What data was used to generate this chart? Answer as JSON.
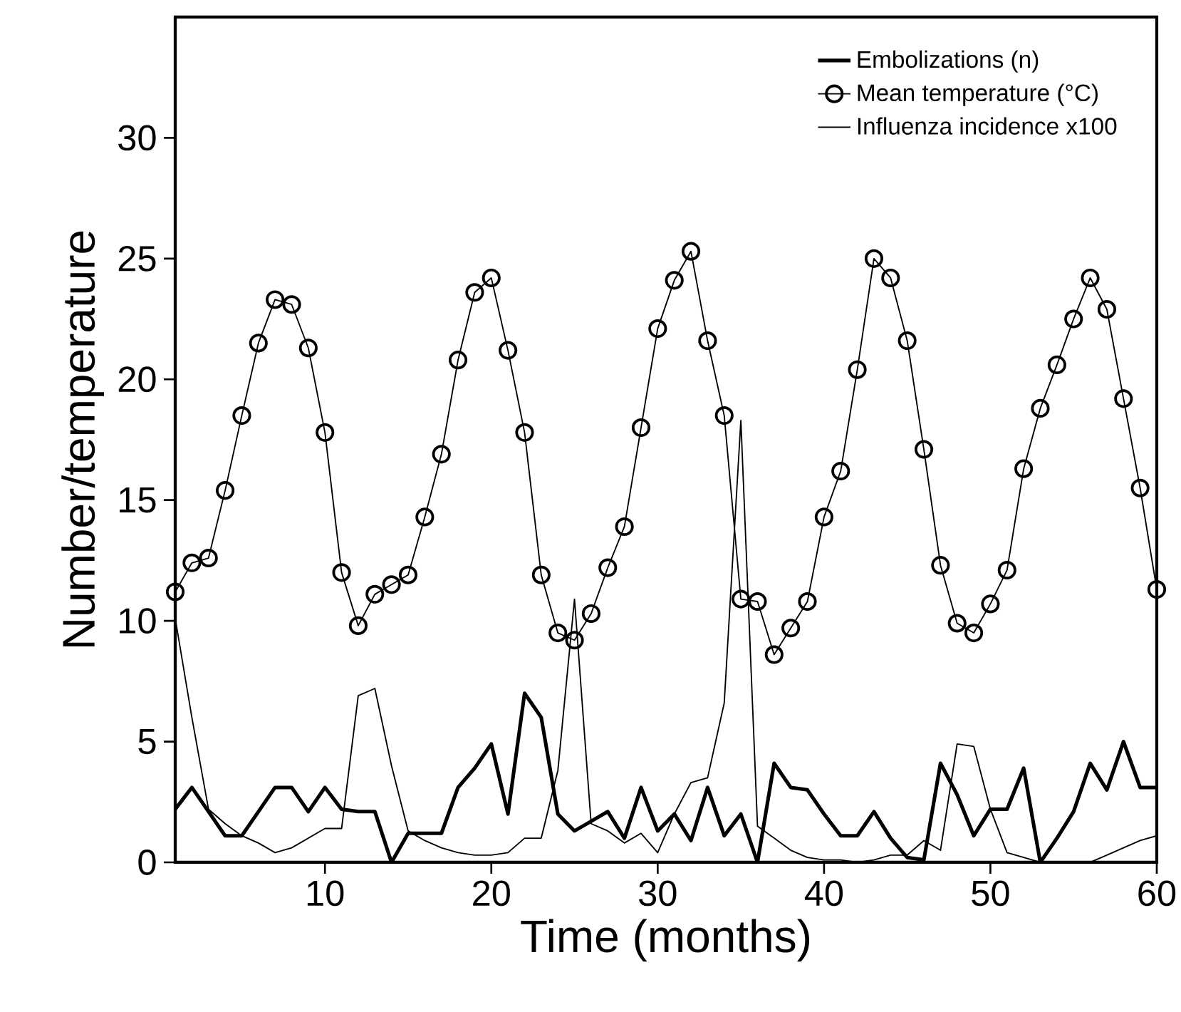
{
  "chart_data": {
    "type": "line",
    "xlabel": "Time (months)",
    "ylabel": "Number/temperature",
    "x": [
      1,
      2,
      3,
      4,
      5,
      6,
      7,
      8,
      9,
      10,
      11,
      12,
      13,
      14,
      15,
      16,
      17,
      18,
      19,
      20,
      21,
      22,
      23,
      24,
      25,
      26,
      27,
      28,
      29,
      30,
      31,
      32,
      33,
      34,
      35,
      36,
      37,
      38,
      39,
      40,
      41,
      42,
      43,
      44,
      45,
      46,
      47,
      48,
      49,
      50,
      51,
      52,
      53,
      54,
      55,
      56,
      57,
      58,
      59,
      60
    ],
    "series": [
      {
        "name": "Embolizations (n)",
        "color": "#000000",
        "values": [
          2.2,
          3.1,
          2.1,
          1.1,
          1.1,
          2.1,
          3.1,
          3.1,
          2.1,
          3.1,
          2.2,
          2.1,
          2.1,
          0,
          1.2,
          1.2,
          1.2,
          3.1,
          3.9,
          4.9,
          2.0,
          7.0,
          6.0,
          2.0,
          1.3,
          1.7,
          2.1,
          1.0,
          3.1,
          1.3,
          2.0,
          0.9,
          3.1,
          1.1,
          2.0,
          0,
          4.1,
          3.1,
          3.0,
          2.0,
          1.1,
          1.1,
          2.1,
          1.0,
          0.2,
          0.1,
          4.1,
          2.8,
          1.1,
          2.2,
          2.2,
          3.9,
          0,
          1.0,
          2.1,
          4.1,
          3.0,
          5.0,
          3.1,
          3.1
        ]
      },
      {
        "name": "Mean temperature (°C)",
        "color": "#000000",
        "marker": "circle",
        "values": [
          11.2,
          12.4,
          12.6,
          15.4,
          18.5,
          21.5,
          23.3,
          23.1,
          21.3,
          17.8,
          12.0,
          9.8,
          11.1,
          11.5,
          11.9,
          14.3,
          16.9,
          20.8,
          23.6,
          24.2,
          21.2,
          17.8,
          11.9,
          9.5,
          9.2,
          10.3,
          12.2,
          13.9,
          18.0,
          22.1,
          24.1,
          25.3,
          21.6,
          18.5,
          10.9,
          10.8,
          8.6,
          9.7,
          10.8,
          14.3,
          16.2,
          20.4,
          25.0,
          24.2,
          21.6,
          17.1,
          12.3,
          9.9,
          9.5,
          10.7,
          12.1,
          16.3,
          18.8,
          20.6,
          22.5,
          24.2,
          22.9,
          19.2,
          15.5,
          11.3
        ]
      },
      {
        "name": "Influenza incidence x100",
        "color": "#000000",
        "values": [
          10.1,
          6.0,
          2.2,
          1.6,
          1.1,
          0.8,
          0.4,
          0.6,
          1.0,
          1.4,
          1.4,
          6.9,
          7.2,
          4.0,
          1.3,
          0.9,
          0.6,
          0.4,
          0.3,
          0.3,
          0.4,
          1.0,
          1.0,
          3.8,
          10.9,
          1.6,
          1.3,
          0.8,
          1.2,
          0.4,
          2.0,
          3.3,
          3.5,
          6.6,
          18.3,
          1.5,
          1.0,
          0.5,
          0.2,
          0.1,
          0.1,
          0,
          0.1,
          0.3,
          0.3,
          0.9,
          0.5,
          4.9,
          4.8,
          2.2,
          0.4,
          0.2,
          0,
          0,
          0,
          0,
          0.3,
          0.6,
          0.9,
          1.1
        ]
      }
    ],
    "xlim": [
      1,
      60
    ],
    "ylim": [
      0,
      35
    ],
    "xticks": [
      10,
      20,
      30,
      40,
      50,
      60
    ],
    "yticks": [
      0,
      5,
      10,
      15,
      20,
      25,
      30
    ],
    "grid": false,
    "legend": "top right",
    "line_style": "solid"
  }
}
